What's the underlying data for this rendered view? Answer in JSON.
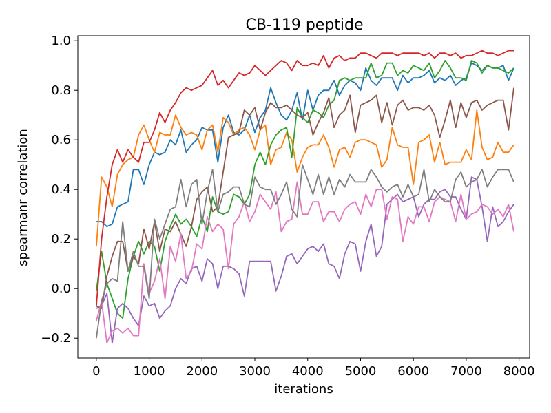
{
  "chart_data": {
    "type": "line",
    "title": "CB-119 peptide",
    "xlabel": "iterations",
    "ylabel": "spearmanr correlation",
    "xlim": [
      -350,
      8200
    ],
    "ylim": [
      -0.28,
      1.02
    ],
    "xticks": [
      0,
      1000,
      2000,
      3000,
      4000,
      5000,
      6000,
      7000,
      8000
    ],
    "xtick_labels": [
      "0",
      "1000",
      "2000",
      "3000",
      "4000",
      "5000",
      "6000",
      "7000",
      "8000"
    ],
    "yticks": [
      -0.2,
      0.0,
      0.2,
      0.4,
      0.6,
      0.8,
      1.0
    ],
    "ytick_labels": [
      "−0.2",
      "0.0",
      "0.2",
      "0.4",
      "0.6",
      "0.8",
      "1.0"
    ],
    "grid": false,
    "x": [
      0,
      100,
      200,
      300,
      400,
      500,
      600,
      700,
      800,
      900,
      1000,
      1100,
      1200,
      1300,
      1400,
      1500,
      1600,
      1700,
      1800,
      1900,
      2000,
      2100,
      2200,
      2300,
      2400,
      2500,
      2600,
      2700,
      2800,
      2900,
      3000,
      3100,
      3200,
      3300,
      3400,
      3500,
      3600,
      3700,
      3800,
      3900,
      4000,
      4100,
      4200,
      4300,
      4400,
      4500,
      4600,
      4700,
      4800,
      4900,
      5000,
      5100,
      5200,
      5300,
      5400,
      5500,
      5600,
      5700,
      5800,
      5900,
      6000,
      6100,
      6200,
      6300,
      6400,
      6500,
      6600,
      6700,
      6800,
      6900,
      7000,
      7100,
      7200,
      7300,
      7400,
      7500,
      7600,
      7700,
      7800,
      7900
    ],
    "series": [
      {
        "color": "#1f77b4",
        "values": [
          0.27,
          0.27,
          0.25,
          0.26,
          0.33,
          0.34,
          0.35,
          0.48,
          0.48,
          0.42,
          0.5,
          0.55,
          0.54,
          0.55,
          0.6,
          0.58,
          0.64,
          0.55,
          0.58,
          0.6,
          0.65,
          0.64,
          0.64,
          0.51,
          0.65,
          0.7,
          0.63,
          0.62,
          0.64,
          0.7,
          0.63,
          0.69,
          0.72,
          0.81,
          0.75,
          0.7,
          0.68,
          0.72,
          0.79,
          0.68,
          0.8,
          0.72,
          0.78,
          0.8,
          0.8,
          0.84,
          0.78,
          0.82,
          0.84,
          0.83,
          0.8,
          0.89,
          0.84,
          0.82,
          0.85,
          0.85,
          0.85,
          0.8,
          0.86,
          0.83,
          0.85,
          0.85,
          0.86,
          0.88,
          0.83,
          0.85,
          0.84,
          0.86,
          0.82,
          0.84,
          0.85,
          0.91,
          0.9,
          0.88,
          0.9,
          0.89,
          0.89,
          0.9,
          0.84,
          0.89
        ]
      },
      {
        "color": "#ff7f0e",
        "values": [
          0.17,
          0.45,
          0.41,
          0.33,
          0.46,
          0.5,
          0.52,
          0.53,
          0.62,
          0.66,
          0.6,
          0.55,
          0.63,
          0.62,
          0.62,
          0.7,
          0.65,
          0.62,
          0.63,
          0.62,
          0.56,
          0.64,
          0.66,
          0.55,
          0.69,
          0.67,
          0.62,
          0.64,
          0.65,
          0.62,
          0.56,
          0.64,
          0.66,
          0.5,
          0.56,
          0.57,
          0.63,
          0.6,
          0.47,
          0.53,
          0.57,
          0.58,
          0.58,
          0.62,
          0.57,
          0.49,
          0.56,
          0.57,
          0.53,
          0.59,
          0.6,
          0.6,
          0.59,
          0.58,
          0.49,
          0.52,
          0.65,
          0.58,
          0.57,
          0.57,
          0.42,
          0.59,
          0.6,
          0.62,
          0.51,
          0.59,
          0.5,
          0.51,
          0.51,
          0.51,
          0.56,
          0.52,
          0.72,
          0.57,
          0.52,
          0.53,
          0.59,
          0.55,
          0.55,
          0.58
        ]
      },
      {
        "color": "#2ca02c",
        "values": [
          -0.01,
          0.15,
          0.02,
          -0.04,
          -0.1,
          -0.12,
          0.04,
          0.13,
          0.19,
          0.14,
          0.19,
          0.17,
          0.07,
          0.19,
          0.25,
          0.3,
          0.26,
          0.28,
          0.25,
          0.21,
          0.29,
          0.23,
          0.37,
          0.31,
          0.3,
          0.31,
          0.38,
          0.37,
          0.34,
          0.38,
          0.5,
          0.55,
          0.5,
          0.58,
          0.62,
          0.64,
          0.65,
          0.53,
          0.73,
          0.69,
          0.67,
          0.72,
          0.71,
          0.69,
          0.74,
          0.76,
          0.84,
          0.85,
          0.84,
          0.85,
          0.85,
          0.85,
          0.91,
          0.85,
          0.86,
          0.91,
          0.91,
          0.86,
          0.88,
          0.87,
          0.9,
          0.89,
          0.88,
          0.91,
          0.85,
          0.88,
          0.92,
          0.89,
          0.85,
          0.85,
          0.84,
          0.92,
          0.91,
          0.87,
          0.9,
          0.89,
          0.89,
          0.88,
          0.87,
          0.89
        ]
      },
      {
        "color": "#d62728",
        "values": [
          -0.07,
          0.2,
          0.37,
          0.5,
          0.56,
          0.51,
          0.56,
          0.53,
          0.51,
          0.59,
          0.59,
          0.64,
          0.71,
          0.67,
          0.72,
          0.75,
          0.79,
          0.81,
          0.8,
          0.81,
          0.82,
          0.85,
          0.88,
          0.82,
          0.84,
          0.81,
          0.84,
          0.87,
          0.86,
          0.87,
          0.9,
          0.88,
          0.86,
          0.88,
          0.9,
          0.92,
          0.91,
          0.88,
          0.92,
          0.9,
          0.9,
          0.91,
          0.9,
          0.94,
          0.89,
          0.93,
          0.94,
          0.92,
          0.93,
          0.93,
          0.95,
          0.95,
          0.94,
          0.93,
          0.95,
          0.95,
          0.95,
          0.94,
          0.95,
          0.95,
          0.95,
          0.95,
          0.94,
          0.95,
          0.93,
          0.95,
          0.95,
          0.94,
          0.95,
          0.93,
          0.94,
          0.94,
          0.95,
          0.96,
          0.95,
          0.95,
          0.94,
          0.95,
          0.96,
          0.96
        ]
      },
      {
        "color": "#9467bd",
        "values": [
          -0.08,
          -0.07,
          -0.02,
          -0.22,
          -0.08,
          -0.06,
          -0.08,
          -0.12,
          -0.15,
          -0.03,
          -0.07,
          -0.06,
          -0.12,
          -0.09,
          -0.07,
          0.0,
          0.04,
          0.02,
          0.08,
          0.09,
          0.03,
          0.12,
          0.1,
          0.0,
          0.09,
          0.09,
          0.08,
          0.06,
          -0.03,
          0.11,
          0.11,
          0.11,
          0.11,
          0.11,
          -0.01,
          0.05,
          0.13,
          0.14,
          0.1,
          0.13,
          0.16,
          0.17,
          0.15,
          0.18,
          0.1,
          0.09,
          0.04,
          0.14,
          0.19,
          0.18,
          0.07,
          0.19,
          0.26,
          0.13,
          0.17,
          0.34,
          0.36,
          0.38,
          0.35,
          0.36,
          0.37,
          0.29,
          0.34,
          0.36,
          0.36,
          0.39,
          0.4,
          0.37,
          0.37,
          0.32,
          0.28,
          0.45,
          0.44,
          0.33,
          0.19,
          0.33,
          0.25,
          0.27,
          0.31,
          0.34
        ]
      },
      {
        "color": "#8c564b",
        "values": [
          -0.07,
          -0.08,
          0.05,
          0.13,
          0.19,
          0.19,
          0.07,
          0.13,
          0.1,
          0.24,
          0.16,
          0.27,
          0.15,
          0.24,
          0.23,
          0.27,
          0.22,
          0.17,
          0.25,
          0.36,
          0.39,
          0.41,
          0.31,
          0.33,
          0.47,
          0.61,
          0.62,
          0.63,
          0.72,
          0.7,
          0.73,
          0.64,
          0.71,
          0.75,
          0.73,
          0.73,
          0.74,
          0.72,
          0.7,
          0.69,
          0.71,
          0.62,
          0.67,
          0.71,
          0.77,
          0.65,
          0.7,
          0.72,
          0.78,
          0.63,
          0.74,
          0.75,
          0.76,
          0.78,
          0.67,
          0.75,
          0.66,
          0.74,
          0.76,
          0.72,
          0.73,
          0.73,
          0.72,
          0.74,
          0.7,
          0.61,
          0.68,
          0.76,
          0.65,
          0.75,
          0.69,
          0.75,
          0.76,
          0.72,
          0.74,
          0.75,
          0.76,
          0.76,
          0.64,
          0.81
        ]
      },
      {
        "color": "#e377c2",
        "values": [
          -0.13,
          -0.05,
          -0.22,
          -0.17,
          -0.16,
          -0.18,
          -0.16,
          -0.19,
          -0.19,
          0.1,
          -0.02,
          0.03,
          0.12,
          -0.04,
          0.17,
          0.11,
          0.22,
          0.04,
          0.07,
          0.18,
          0.16,
          0.29,
          0.23,
          0.26,
          0.24,
          0.08,
          0.26,
          0.29,
          0.35,
          0.27,
          0.31,
          0.38,
          0.35,
          0.32,
          0.39,
          0.23,
          0.27,
          0.28,
          0.43,
          0.3,
          0.3,
          0.35,
          0.35,
          0.27,
          0.31,
          0.31,
          0.27,
          0.32,
          0.34,
          0.35,
          0.3,
          0.38,
          0.33,
          0.4,
          0.4,
          0.28,
          0.37,
          0.36,
          0.19,
          0.29,
          0.26,
          0.33,
          0.33,
          0.27,
          0.35,
          0.37,
          0.36,
          0.35,
          0.27,
          0.38,
          0.28,
          0.3,
          0.31,
          0.34,
          0.33,
          0.3,
          0.32,
          0.29,
          0.34,
          0.23
        ]
      },
      {
        "color": "#7f7f7f",
        "values": [
          -0.2,
          -0.05,
          0.02,
          0.04,
          0.03,
          0.27,
          0.07,
          0.15,
          0.09,
          0.09,
          -0.04,
          0.28,
          0.2,
          0.26,
          0.32,
          0.33,
          0.44,
          0.33,
          0.42,
          0.44,
          0.26,
          0.39,
          0.48,
          0.31,
          0.38,
          0.39,
          0.41,
          0.41,
          0.34,
          0.33,
          0.45,
          0.41,
          0.4,
          0.4,
          0.34,
          0.38,
          0.43,
          0.32,
          0.29,
          0.5,
          0.44,
          0.38,
          0.46,
          0.38,
          0.45,
          0.38,
          0.44,
          0.41,
          0.46,
          0.43,
          0.43,
          0.43,
          0.48,
          0.45,
          0.41,
          0.39,
          0.41,
          0.42,
          0.37,
          0.42,
          0.37,
          0.38,
          0.48,
          0.35,
          0.4,
          0.37,
          0.35,
          0.35,
          0.44,
          0.47,
          0.41,
          0.43,
          0.44,
          0.48,
          0.41,
          0.45,
          0.48,
          0.48,
          0.48,
          0.43
        ]
      }
    ]
  }
}
